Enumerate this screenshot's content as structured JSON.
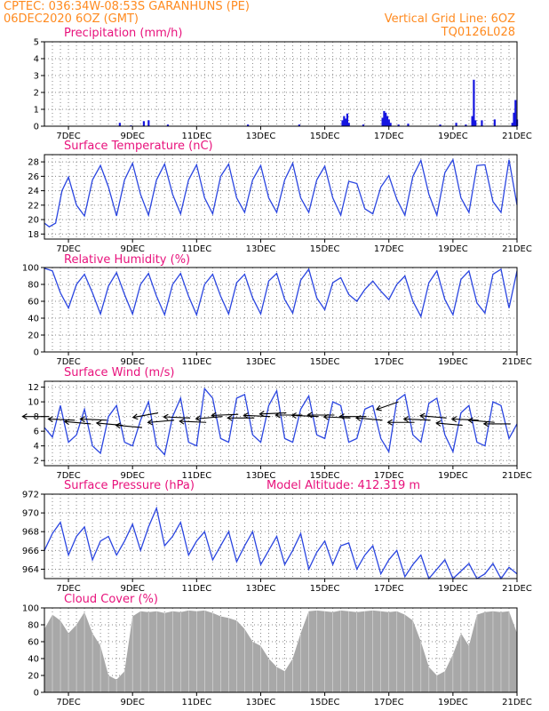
{
  "header": {
    "line1": "CPTEC:  036:34W-08:53S  GARANHUNS (PE)",
    "line2": "06DEC2020 6OZ (GMT)",
    "grid_note": "Vertical Grid Line: 6OZ",
    "run_id": "TQ0126L028"
  },
  "colors": {
    "header": "#ff8a1f",
    "panel_title": "#e8127c",
    "precip_bars": "#1515e0",
    "line": "#2a45e0",
    "wind_arrows": "#000000",
    "cloud": "#a8a8a8"
  },
  "chart_data": [
    {
      "id": "precip",
      "type": "bar",
      "title": "Precipitation (mm/h)",
      "ylim": [
        0,
        5
      ],
      "yticks": [
        0,
        1,
        2,
        3,
        4,
        5
      ],
      "xlim": [
        6.25,
        21.0
      ],
      "xticks": [
        "7DEC",
        "9DEC",
        "11DEC",
        "13DEC",
        "15DEC",
        "17DEC",
        "19DEC",
        "21DEC"
      ],
      "grid": true,
      "x": [
        8.6,
        8.95,
        9.35,
        9.5,
        10.1,
        12.6,
        14.2,
        15.55,
        15.6,
        15.65,
        15.7,
        15.75,
        16.2,
        16.8,
        16.85,
        16.9,
        16.95,
        17.0,
        17.05,
        17.3,
        17.6,
        18.6,
        19.1,
        19.4,
        19.6,
        19.65,
        19.7,
        19.9,
        20.3,
        20.85,
        20.9,
        20.95,
        21.0
      ],
      "values": [
        0.2,
        0.05,
        0.3,
        0.35,
        0.1,
        0.1,
        0.1,
        0.35,
        0.6,
        0.45,
        0.75,
        0.2,
        0.1,
        0.5,
        0.9,
        0.8,
        0.6,
        0.4,
        0.2,
        0.1,
        0.15,
        0.1,
        0.2,
        0.1,
        0.6,
        2.75,
        0.35,
        0.35,
        0.4,
        0.2,
        0.8,
        1.55,
        0.4
      ]
    },
    {
      "id": "temperature",
      "type": "line",
      "title": "Surface Temperature (nC)",
      "ylim": [
        17.3,
        29.0
      ],
      "yticks": [
        18,
        20,
        22,
        24,
        26,
        28
      ],
      "xlim": [
        6.25,
        21.0
      ],
      "xticks": [
        "7DEC",
        "9DEC",
        "11DEC",
        "13DEC",
        "15DEC",
        "17DEC",
        "19DEC",
        "21DEC"
      ],
      "grid": true,
      "x": [
        6.25,
        6.4,
        6.6,
        6.8,
        7.0,
        7.25,
        7.5,
        7.75,
        8.0,
        8.25,
        8.5,
        8.75,
        9.0,
        9.25,
        9.5,
        9.75,
        10.0,
        10.25,
        10.5,
        10.75,
        11.0,
        11.25,
        11.5,
        11.75,
        12.0,
        12.25,
        12.5,
        12.75,
        13.0,
        13.25,
        13.5,
        13.75,
        14.0,
        14.25,
        14.5,
        14.75,
        15.0,
        15.25,
        15.5,
        15.75,
        16.0,
        16.25,
        16.5,
        16.75,
        17.0,
        17.25,
        17.5,
        17.75,
        18.0,
        18.25,
        18.5,
        18.75,
        19.0,
        19.25,
        19.5,
        19.75,
        20.0,
        20.25,
        20.5,
        20.75,
        21.0
      ],
      "values": [
        19.5,
        19.0,
        19.5,
        24.0,
        25.9,
        22.0,
        20.5,
        25.5,
        27.5,
        24.5,
        20.5,
        25.5,
        27.8,
        23.5,
        20.6,
        25.5,
        27.7,
        23.5,
        20.8,
        25.5,
        27.6,
        23.0,
        20.8,
        26.0,
        27.7,
        23.0,
        21.0,
        25.5,
        27.5,
        23.0,
        21.0,
        25.5,
        27.8,
        23.0,
        21.0,
        25.5,
        27.4,
        23.0,
        20.6,
        25.3,
        25.0,
        21.5,
        20.8,
        24.5,
        26.1,
        22.8,
        20.6,
        26.0,
        28.2,
        23.5,
        20.6,
        26.5,
        28.3,
        23.0,
        21.0,
        27.5,
        27.6,
        22.5,
        21.0,
        28.3,
        22.0
      ]
    },
    {
      "id": "humidity",
      "type": "line",
      "title": "Relative Humidity (%)",
      "ylim": [
        0,
        100
      ],
      "yticks": [
        0,
        20,
        40,
        60,
        80,
        100
      ],
      "xlim": [
        6.25,
        21.0
      ],
      "xticks": [
        "7DEC",
        "9DEC",
        "11DEC",
        "13DEC",
        "15DEC",
        "17DEC",
        "19DEC",
        "21DEC"
      ],
      "grid": true,
      "x": [
        6.25,
        6.5,
        6.75,
        7.0,
        7.25,
        7.5,
        7.75,
        8.0,
        8.25,
        8.5,
        8.75,
        9.0,
        9.25,
        9.5,
        9.75,
        10.0,
        10.25,
        10.5,
        10.75,
        11.0,
        11.25,
        11.5,
        11.75,
        12.0,
        12.25,
        12.5,
        12.75,
        13.0,
        13.25,
        13.5,
        13.75,
        14.0,
        14.25,
        14.5,
        14.75,
        15.0,
        15.25,
        15.5,
        15.75,
        16.0,
        16.25,
        16.5,
        16.75,
        17.0,
        17.25,
        17.5,
        17.75,
        18.0,
        18.25,
        18.5,
        18.75,
        19.0,
        19.25,
        19.5,
        19.75,
        20.0,
        20.25,
        20.5,
        20.75,
        21.0
      ],
      "values": [
        99,
        96,
        70,
        52,
        80,
        92,
        70,
        45,
        78,
        94,
        68,
        45,
        80,
        93,
        66,
        44,
        80,
        93,
        66,
        44,
        80,
        92,
        66,
        45,
        82,
        92,
        64,
        45,
        84,
        93,
        62,
        46,
        85,
        98,
        64,
        50,
        82,
        88,
        68,
        60,
        74,
        84,
        72,
        62,
        80,
        90,
        60,
        42,
        82,
        96,
        62,
        44,
        86,
        96,
        58,
        46,
        92,
        98,
        52,
        96
      ]
    },
    {
      "id": "wind",
      "type": "line",
      "title": "Surface Wind (m/s)",
      "ylim": [
        1.3,
        12.8
      ],
      "yticks": [
        2,
        4,
        6,
        8,
        10,
        12
      ],
      "xlim": [
        6.25,
        21.0
      ],
      "xticks": [
        "7DEC",
        "9DEC",
        "11DEC",
        "13DEC",
        "15DEC",
        "17DEC",
        "19DEC",
        "21DEC"
      ],
      "grid": true,
      "x": [
        6.25,
        6.5,
        6.75,
        7.0,
        7.25,
        7.5,
        7.75,
        8.0,
        8.25,
        8.5,
        8.75,
        9.0,
        9.25,
        9.5,
        9.75,
        10.0,
        10.25,
        10.5,
        10.75,
        11.0,
        11.25,
        11.5,
        11.75,
        12.0,
        12.25,
        12.5,
        12.75,
        13.0,
        13.25,
        13.5,
        13.75,
        14.0,
        14.25,
        14.5,
        14.75,
        15.0,
        15.25,
        15.5,
        15.75,
        16.0,
        16.25,
        16.5,
        16.75,
        17.0,
        17.25,
        17.5,
        17.75,
        18.0,
        18.25,
        18.5,
        18.75,
        19.0,
        19.25,
        19.5,
        19.75,
        20.0,
        20.25,
        20.5,
        20.75,
        21.0
      ],
      "values": [
        6.5,
        5.2,
        9.5,
        4.5,
        5.5,
        9.0,
        4.0,
        3.0,
        8.0,
        9.5,
        4.5,
        4.0,
        7.5,
        10.0,
        4.0,
        2.8,
        8.0,
        10.5,
        4.5,
        4.0,
        11.8,
        10.5,
        5.0,
        4.5,
        10.5,
        11.0,
        5.5,
        4.5,
        9.5,
        11.5,
        5.0,
        4.5,
        9.0,
        10.8,
        5.5,
        5.0,
        10.0,
        9.5,
        4.5,
        5.0,
        9.0,
        9.5,
        5.0,
        3.2,
        10.2,
        11.0,
        5.5,
        4.5,
        9.8,
        10.5,
        5.5,
        3.2,
        8.5,
        9.5,
        4.5,
        4.0,
        10.0,
        9.5,
        5.0,
        7.0
      ],
      "arrows": {
        "x": [
          6.4,
          7.2,
          7.7,
          8.2,
          8.7,
          9.3,
          9.8,
          10.3,
          10.8,
          11.3,
          11.8,
          12.3,
          12.8,
          13.3,
          13.8,
          14.3,
          14.8,
          15.3,
          15.8,
          16.3,
          16.8,
          17.3,
          17.8,
          18.3,
          18.8,
          19.3,
          19.8,
          20.3,
          20.8
        ],
        "speed": [
          8.0,
          7.5,
          7.0,
          7.5,
          6.8,
          6.5,
          8.5,
          7.5,
          7.8,
          7.2,
          8.0,
          8.3,
          7.8,
          8.0,
          8.5,
          8.2,
          8.0,
          8.2,
          7.8,
          8.0,
          7.5,
          10.0,
          7.2,
          7.5,
          7.8,
          6.8,
          7.5,
          7.2,
          7.0
        ],
        "dir_deg": [
          90,
          95,
          100,
          95,
          100,
          100,
          70,
          80,
          95,
          95,
          80,
          85,
          90,
          95,
          85,
          90,
          95,
          90,
          95,
          90,
          100,
          55,
          90,
          95,
          100,
          100,
          95,
          100,
          90
        ]
      }
    },
    {
      "id": "pressure",
      "type": "line",
      "title": "Surface Pressure (hPa)",
      "annotation": "Model Altitude: 412.319 m",
      "ylim": [
        963.0,
        972.0
      ],
      "yticks": [
        964,
        966,
        968,
        970,
        972
      ],
      "xlim": [
        6.25,
        21.0
      ],
      "xticks": [
        "7DEC",
        "9DEC",
        "11DEC",
        "13DEC",
        "15DEC",
        "17DEC",
        "19DEC",
        "21DEC"
      ],
      "grid": true,
      "x": [
        6.25,
        6.5,
        6.75,
        7.0,
        7.25,
        7.5,
        7.75,
        8.0,
        8.25,
        8.5,
        8.75,
        9.0,
        9.25,
        9.5,
        9.75,
        10.0,
        10.25,
        10.5,
        10.75,
        11.0,
        11.25,
        11.5,
        11.75,
        12.0,
        12.25,
        12.5,
        12.75,
        13.0,
        13.25,
        13.5,
        13.75,
        14.0,
        14.25,
        14.5,
        14.75,
        15.0,
        15.25,
        15.5,
        15.75,
        16.0,
        16.25,
        16.5,
        16.75,
        17.0,
        17.25,
        17.5,
        17.75,
        18.0,
        18.25,
        18.5,
        18.75,
        19.0,
        19.25,
        19.5,
        19.75,
        20.0,
        20.25,
        20.5,
        20.75,
        21.0
      ],
      "values": [
        966.0,
        967.8,
        969.0,
        965.5,
        967.5,
        968.5,
        965.0,
        967.0,
        967.5,
        965.5,
        967.0,
        968.8,
        966.0,
        968.5,
        970.5,
        966.5,
        967.5,
        969.0,
        965.5,
        967.0,
        968.0,
        965.0,
        966.5,
        968.0,
        964.8,
        966.5,
        968.0,
        964.5,
        966.0,
        967.5,
        964.5,
        966.0,
        967.8,
        964.0,
        965.8,
        967.0,
        964.5,
        966.5,
        966.8,
        964.0,
        965.5,
        966.5,
        963.5,
        965.0,
        966.0,
        963.2,
        964.5,
        965.5,
        963.0,
        964.0,
        965.0,
        963.0,
        963.8,
        964.6,
        963.0,
        963.5,
        964.6,
        963.0,
        964.2,
        963.5
      ]
    },
    {
      "id": "cloud",
      "type": "area",
      "title": "Cloud Cover (%)",
      "ylim": [
        0,
        100
      ],
      "yticks": [
        0,
        20,
        40,
        60,
        80,
        100
      ],
      "xlim": [
        6.25,
        21.0
      ],
      "xticks": [
        "7DEC",
        "9DEC",
        "11DEC",
        "13DEC",
        "15DEC",
        "17DEC",
        "19DEC",
        "21DEC"
      ],
      "grid": true,
      "x": [
        6.25,
        6.5,
        6.75,
        7.0,
        7.25,
        7.5,
        7.75,
        8.0,
        8.25,
        8.5,
        8.75,
        9.0,
        9.25,
        9.5,
        9.75,
        10.0,
        10.25,
        10.5,
        10.75,
        11.0,
        11.25,
        11.5,
        11.75,
        12.0,
        12.25,
        12.5,
        12.75,
        13.0,
        13.25,
        13.5,
        13.75,
        14.0,
        14.25,
        14.5,
        14.75,
        15.0,
        15.25,
        15.5,
        15.75,
        16.0,
        16.25,
        16.5,
        16.75,
        17.0,
        17.25,
        17.5,
        17.75,
        18.0,
        18.25,
        18.5,
        18.75,
        19.0,
        19.25,
        19.5,
        19.75,
        20.0,
        20.25,
        20.5,
        20.75,
        21.0
      ],
      "values": [
        75,
        92,
        85,
        70,
        80,
        95,
        70,
        55,
        20,
        15,
        25,
        90,
        96,
        95,
        96,
        94,
        96,
        95,
        97,
        96,
        97,
        94,
        90,
        88,
        85,
        75,
        60,
        55,
        40,
        30,
        25,
        40,
        70,
        96,
        97,
        96,
        95,
        97,
        96,
        95,
        96,
        97,
        96,
        95,
        96,
        92,
        85,
        60,
        30,
        20,
        25,
        45,
        70,
        55,
        92,
        95,
        96,
        95,
        96,
        70
      ]
    }
  ]
}
